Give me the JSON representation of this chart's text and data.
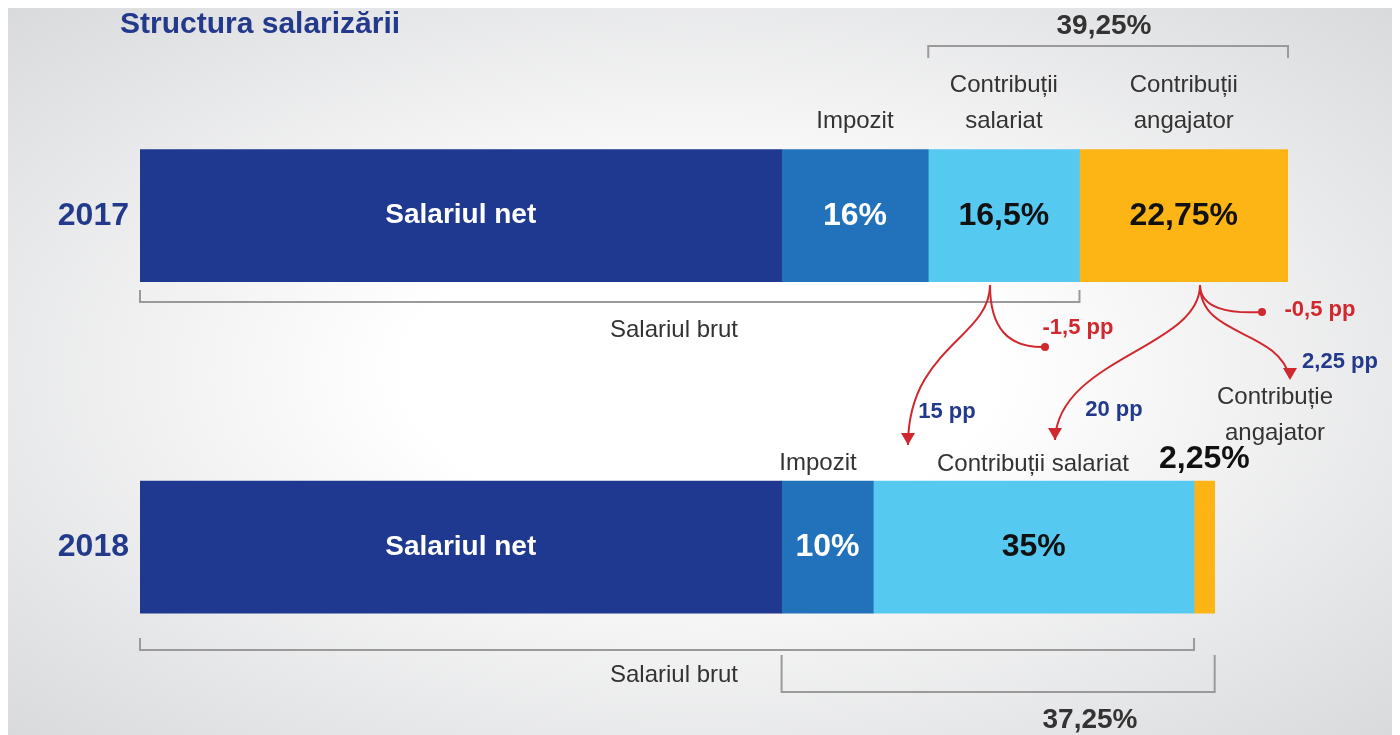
{
  "chart_data": {
    "type": "bar",
    "orientation": "horizontal",
    "stacked": true,
    "tick_labels": "y",
    "title": "Structura salarizării",
    "categories": [
      "2017",
      "2018"
    ],
    "series": [
      {
        "name": "Salariul net",
        "color": "#1f3990",
        "values": [
          70,
          70
        ],
        "value_labels": [
          null,
          null
        ]
      },
      {
        "name": "Impozit",
        "color": "#2272bb",
        "values": [
          16,
          10
        ],
        "value_labels": [
          "16%",
          "10%"
        ]
      },
      {
        "name": "Contribuții salariat",
        "color": "#56c9f0",
        "values": [
          16.5,
          35
        ],
        "value_labels": [
          "16,5%",
          "35%"
        ]
      },
      {
        "name": "Contribuții angajator",
        "color": "#fdb515",
        "values": [
          22.75,
          2.25
        ],
        "value_labels": [
          "22,75%",
          "2,25%"
        ]
      }
    ],
    "annotations": [
      "39,25%",
      "Salariul brut",
      "-1,5 pp",
      "-0,5 pp",
      "15 pp",
      "20 pp",
      "2,25 pp",
      "Impozit",
      "Contribuții salariat",
      "Contribuție angajator",
      "Salariul brut",
      "37,25%"
    ]
  }
}
